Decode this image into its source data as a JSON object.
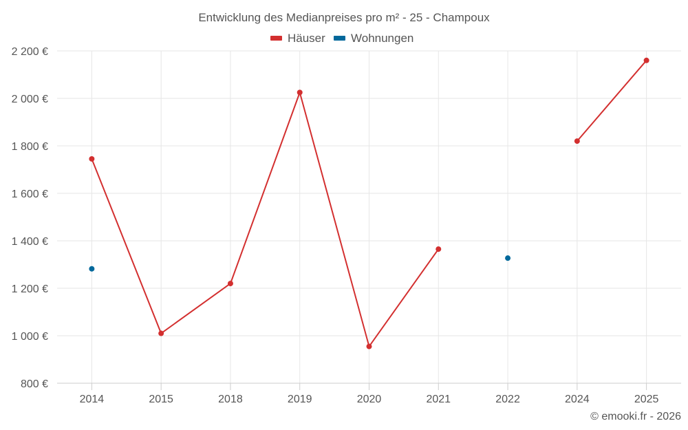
{
  "chart_data": {
    "type": "line",
    "title": "Entwicklung des Medianpreises pro m² - 25 - Champoux",
    "categories": [
      "2014",
      "2015",
      "2018",
      "2019",
      "2020",
      "2021",
      "2022",
      "2024",
      "2025"
    ],
    "ylim": [
      800,
      2200
    ],
    "yticks": [
      800,
      1000,
      1200,
      1400,
      1600,
      1800,
      2000,
      2200
    ],
    "ytick_labels": [
      "800 €",
      "1 000 €",
      "1 200 €",
      "1 400 €",
      "1 600 €",
      "1 800 €",
      "2 000 €",
      "2 200 €"
    ],
    "legend_position": "top-center",
    "grid": true,
    "series": [
      {
        "name": "Häuser",
        "color": "#d32f2f",
        "values": [
          1745,
          1010,
          1220,
          2025,
          955,
          1365,
          null,
          1820,
          2160
        ]
      },
      {
        "name": "Wohnungen",
        "color": "#01689b",
        "values": [
          1282,
          null,
          null,
          null,
          null,
          null,
          1327,
          null,
          null
        ]
      }
    ]
  },
  "credit": "© emooki.fr - 2026"
}
